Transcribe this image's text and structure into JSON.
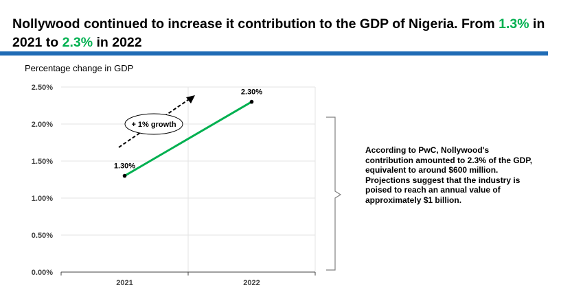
{
  "title": {
    "part1": "Nollywood continued to increase it contribution to the GDP of Nigeria. From ",
    "highlight1": "1.3%",
    "part2": " in 2021 to ",
    "highlight2": "2.3%",
    "part3": " in 2022"
  },
  "colors": {
    "accent_rule": "#1f6bb5",
    "highlight": "#00b050",
    "series_line": "#00b050"
  },
  "chart_data": {
    "type": "line",
    "title": "Percentage change in GDP",
    "x": [
      "2021",
      "2022"
    ],
    "series": [
      {
        "values": [
          1.3,
          2.3
        ],
        "data_labels": [
          "1.30%",
          "2.30%"
        ]
      }
    ],
    "ylim": [
      0,
      2.5
    ],
    "yticks": [
      "0.00%",
      "0.50%",
      "1.00%",
      "1.50%",
      "2.00%",
      "2.50%"
    ],
    "grid": true,
    "annotation": "+ 1% growth"
  },
  "note": "According to PwC, Nollywood's contribution amounted to 2.3% of the GDP, equivalent to around $600 million. Projections suggest that the industry is poised to reach an annual value of approximately $1 billion."
}
